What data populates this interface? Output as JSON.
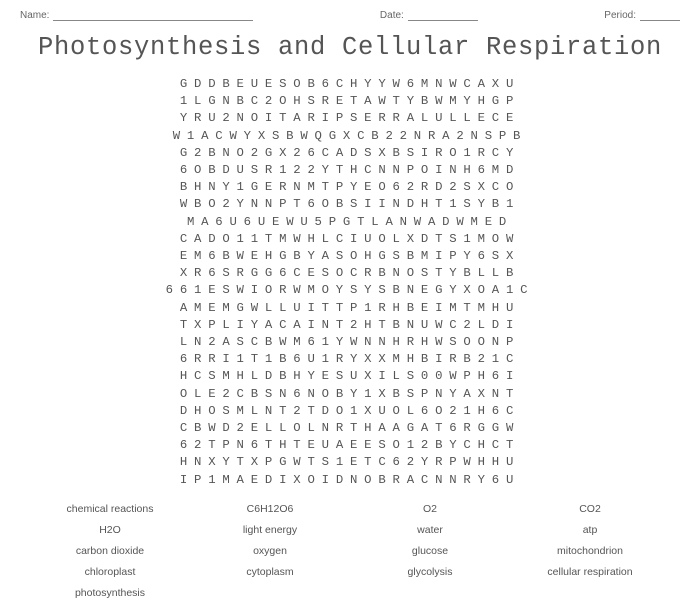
{
  "header": {
    "name_label": "Name:",
    "date_label": "Date:",
    "period_label": "Period:"
  },
  "title": "Photosynthesis and Cellular Respiration",
  "grid": {
    "rows": [
      "GDDBEUESOB6CHYYW6MNWCAXU",
      "1LGNBC2OHSRETAWTYBWMYHGP",
      "YRU2NOITARIPSERRALULLECE",
      "W1ACWYXSBWQGXCB22NRA2NSPB",
      "G2BNO2GX26CADSXBSIRO1RCY",
      "6OBDUSR122YTHCNNPOINH6MD",
      "BHNY1GERNMTPYEO62RD2SXCO",
      "WBO2YNNPT6OBSIINDHT1SYB1",
      "MA6U6UEWU5PGTLANWADWMED",
      "CADO11TMWHLCIUOLXDTS1MOW",
      "EM6BWEHGBYASOHGSBMIPY6SX",
      "XR6SRGG6CESOCRBNOSTYBLLB",
      "661ESWIORWMOYSYSBNEGYXOA1C",
      "AMEMGWLLUITTP1RHBEIMTMHU",
      "TXPLIYACAINT2HTBNUWC2LDI",
      "LN2ASCBWM61YWNNHRHWSOONP",
      "6RRI1T1B6U1RYXXMHBIRB21C",
      "HCSMHLDBHYESUXILS00WPH6I",
      "OLE2CBSN6NOBY1XBSPNYAXNT",
      "DHOSMLNT2TDO1XUOL6O21H6C",
      "CBWD2ELLOLNRTHAAGAT6RGGW",
      "62TPN6THTEUAEESO12BYCHCT",
      "HNXYTXPGWTS1ETC62YRPWHHU",
      "IP1MAEDIXOIDNOBRACNNRY6U"
    ]
  },
  "word_bank": {
    "rows": [
      [
        "chemical reactions",
        "C6H12O6",
        "O2",
        "CO2"
      ],
      [
        "H2O",
        "light energy",
        "water",
        "atp"
      ],
      [
        "carbon dioxide",
        "oxygen",
        "glucose",
        "mitochondrion"
      ],
      [
        "chloroplast",
        "cytoplasm",
        "glycolysis",
        "cellular respiration"
      ],
      [
        "photosynthesis",
        "",
        "",
        ""
      ]
    ]
  }
}
